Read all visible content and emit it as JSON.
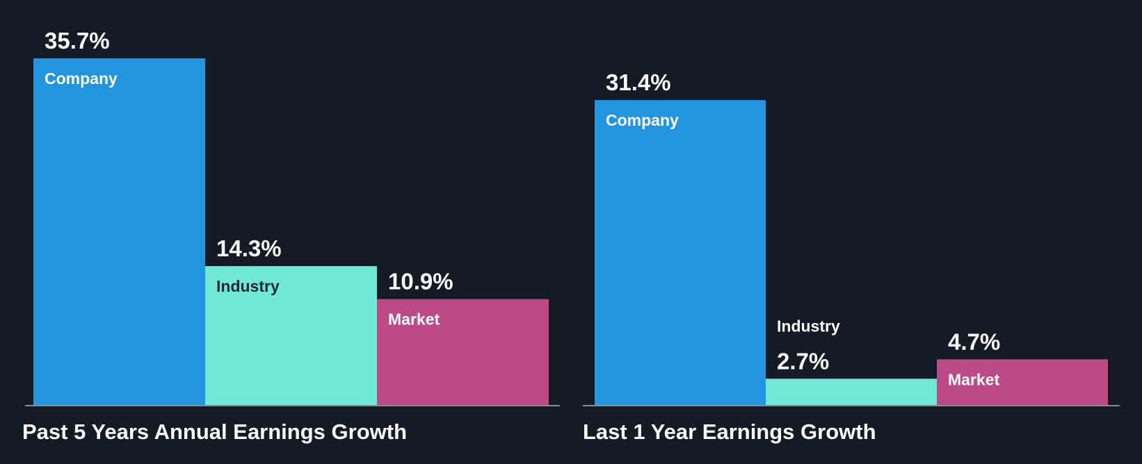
{
  "colors": {
    "background": "#151b24",
    "company": "#2394e0",
    "industry": "#6fe8d6",
    "market": "#bb4a86",
    "axis": "#8a8f96",
    "label_light": "#ffffff",
    "label_dark": "#1c2a33"
  },
  "chart_data": [
    {
      "type": "bar",
      "title": "Past 5 Years Annual Earnings Growth",
      "categories": [
        "Company",
        "Industry",
        "Market"
      ],
      "values": [
        35.7,
        14.3,
        10.9
      ],
      "value_labels": [
        "35.7%",
        "14.3%",
        "10.9%"
      ],
      "unit": "%",
      "ylim": [
        0,
        35.7
      ],
      "grid": false,
      "legend": "none"
    },
    {
      "type": "bar",
      "title": "Last 1 Year Earnings Growth",
      "categories": [
        "Company",
        "Industry",
        "Market"
      ],
      "values": [
        31.4,
        2.7,
        4.7
      ],
      "value_labels": [
        "31.4%",
        "2.7%",
        "4.7%"
      ],
      "unit": "%",
      "ylim": [
        0,
        35.7
      ],
      "grid": false,
      "legend": "none"
    }
  ]
}
